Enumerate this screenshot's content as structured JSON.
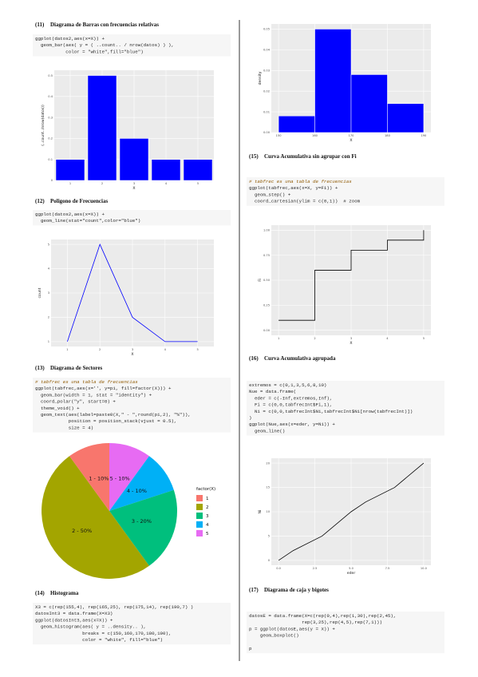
{
  "sections": [
    {
      "number": "(11)",
      "title": "Diagrama de Barras con frecuencias relativas",
      "code": [
        "ggplot(datos2,aes(x=X)) +",
        "  geom_bar(aes( y = ( ..count.. / nrow(datos) ) ),",
        "           color = \"white\",fill=\"blue\")"
      ]
    },
    {
      "number": "(12)",
      "title": "Poligono de Frecuencias",
      "code": [
        "ggplot(datos2,aes(x=X)) +",
        "  geom_line(stat=\"count\",color=\"blue\")"
      ]
    },
    {
      "number": "(13)",
      "title": "Diagrama de Sectores",
      "code": [
        "# tabfrec es una tabla de frecuencias",
        "ggplot(tabfrec,aes(x='', y=pi, fill=factor(X))) +",
        "  geom_bar(width = 1, stat = \"identity\") +",
        "  coord_polar(\"y\", start=0) +",
        "  theme_void() +",
        "  geom_text(aes(label=paste0(X,\" - \",round(pi,2), \"%\")),",
        "            position = position_stack(vjust = 0.5),",
        "            size = 4)"
      ]
    },
    {
      "number": "(14)",
      "title": "Histograma",
      "code": [
        "X3 = c(rep(155,4), rep(165,25), rep(175,14), rep(190,7) )",
        "datosInt3 = data.frame(X=X3)",
        "ggplot(datosInt3,aes(x=X)) +",
        "  geom_histogram(aes( y = ..density.. ),",
        "                 breaks = c(150,160,170,180,190),",
        "                 color = \"white\", fill=\"blue\")"
      ]
    },
    {
      "number": "(15)",
      "title": "Curva Acumulativa sin agrupar con Fi",
      "code": [
        "# tabfrec es una tabla de frecuencias",
        "ggplot(tabfrec,aes(x=X, y=Fi)) +",
        "  geom_step() +",
        "  coord_cartesian(ylim = c(0,1))  # zoom"
      ]
    },
    {
      "number": "(16)",
      "title": "Curva Acumulativa agrupada",
      "code": [
        "extremos = c(0,1,3,5,6,8,10)",
        "Nue = data.frame(",
        "  eder = c(-Inf,extremos,Inf),",
        "  Fi = c(0,0,tabfrecInt$Fi,1),",
        "  Ni = c(0,0,tabfrecInt$Ni,tabfrecInt$Ni[nrow(tabfrecInt)])",
        ")",
        "ggplot(Nue,aes(x=eder, y=Ni)) +",
        "  geom_line()"
      ]
    },
    {
      "number": "(17)",
      "title": "Diagrama de caja y bigotes",
      "code": [
        "datosE = data.frame(X=c(rep(0,4),rep(1,30),rep(2,45),",
        "                   rep(3,25),rep(4,5),rep(7,1)))",
        "p = ggplot(datosE,aes(y = X)) +",
        "    geom_boxplot()",
        "",
        "p"
      ]
    }
  ],
  "chart_data": [
    {
      "type": "bar",
      "categories": [
        "1",
        "2",
        "3",
        "4",
        "5"
      ],
      "values": [
        0.1,
        0.5,
        0.2,
        0.1,
        0.1
      ],
      "color": "#0000ff",
      "ylim": [
        0,
        0.525
      ],
      "yticks": [
        0,
        0.1,
        0.2,
        0.3,
        0.4,
        0.5
      ],
      "xlabel": "X",
      "ylabel": "(..count../nrow(datos))",
      "grid": true
    },
    {
      "type": "line",
      "categories": [
        "1",
        "2",
        "3",
        "4",
        "5"
      ],
      "values": [
        1,
        5,
        2,
        1,
        1
      ],
      "color": "#0000ff",
      "ylim": [
        0.8,
        5.2
      ],
      "yticks": [
        1,
        2,
        3,
        4,
        5
      ],
      "xlabel": "X",
      "ylabel": "count",
      "grid": true
    },
    {
      "type": "pie",
      "categories": [
        "1",
        "2",
        "3",
        "4",
        "5"
      ],
      "values": [
        10,
        50,
        20,
        10,
        10
      ],
      "value_labels": [
        "1 - 10%",
        "2 - 50%",
        "3 - 20%",
        "4 - 10%",
        "5 - 10%"
      ],
      "colors": [
        "#F8766D",
        "#A3A500",
        "#00BF7D",
        "#00B0F6",
        "#E76BF3"
      ],
      "legend_title": "factor(X)"
    },
    {
      "type": "histogram",
      "bins": [
        150,
        160,
        170,
        180,
        190
      ],
      "values": [
        0.008,
        0.05,
        0.028,
        0.014
      ],
      "color": "#0000ff",
      "xlim": [
        148,
        192
      ],
      "xticks": [
        150,
        160,
        170,
        180,
        190
      ],
      "ylim": [
        0,
        0.0525
      ],
      "yticks": [
        {
          "value": 0,
          "label": "0.00"
        },
        0.01,
        0.02,
        0.03,
        0.04,
        0.05
      ],
      "xlabel": "X",
      "ylabel": "density",
      "grid": true
    },
    {
      "type": "step",
      "x": [
        1,
        2,
        3,
        4,
        5
      ],
      "values": [
        0.1,
        0.6,
        0.8,
        0.9,
        1
      ],
      "color": "#000000",
      "xlim": [
        0.8,
        5.2
      ],
      "xticks": [
        1,
        2,
        3,
        4,
        5
      ],
      "ylim": [
        -0.05,
        1.05
      ],
      "yticks": [
        {
          "value": 0,
          "label": "0.00"
        },
        0.25,
        {
          "value": 0.5,
          "label": "0.50"
        },
        0.75,
        {
          "value": 1,
          "label": "1.00"
        }
      ],
      "xlabel": "X",
      "ylabel": "Fi",
      "grid": true
    },
    {
      "type": "line",
      "x": [
        0,
        1,
        3,
        5,
        6,
        8,
        10
      ],
      "values": [
        0,
        2,
        5,
        10,
        12,
        15,
        20
      ],
      "color": "#000000",
      "xlim": [
        -0.5,
        10.5
      ],
      "xticks": [
        {
          "value": 0,
          "label": "0.0"
        },
        2.5,
        {
          "value": 5,
          "label": "5.0"
        },
        7.5,
        {
          "value": 10,
          "label": "10.0"
        }
      ],
      "ylim": [
        -1,
        21
      ],
      "yticks": [
        0,
        5,
        10,
        15,
        20
      ],
      "xlabel": "eder",
      "ylabel": "Ni",
      "grid": true
    }
  ]
}
